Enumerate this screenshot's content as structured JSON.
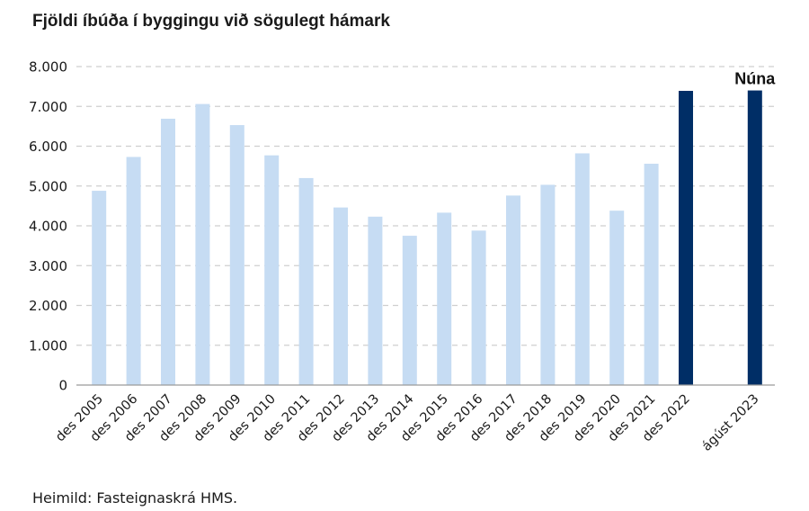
{
  "chart_data": {
    "type": "bar",
    "title": "Fjöldi íbúða í byggingu við sögulegt hámark",
    "categories": [
      "des 2005",
      "des 2006",
      "des 2007",
      "des 2008",
      "des 2009",
      "des 2010",
      "des 2011",
      "des 2012",
      "des 2013",
      "des 2014",
      "des 2015",
      "des 2016",
      "des 2017",
      "des 2018",
      "des 2019",
      "des 2020",
      "des 2021",
      "des 2022",
      "",
      "ágúst 2023"
    ],
    "values": [
      4880,
      5730,
      6690,
      7060,
      6530,
      5770,
      5200,
      4460,
      4230,
      3750,
      4330,
      3880,
      4760,
      5030,
      5820,
      4380,
      5560,
      7390,
      null,
      7400
    ],
    "highlight": [
      false,
      false,
      false,
      false,
      false,
      false,
      false,
      false,
      false,
      false,
      false,
      false,
      false,
      false,
      false,
      false,
      false,
      true,
      false,
      true
    ],
    "ylim": [
      0,
      8000
    ],
    "yticks": [
      0,
      1000,
      2000,
      3000,
      4000,
      5000,
      6000,
      7000,
      8000
    ],
    "ytick_labels": [
      "0",
      "1.000",
      "2.000",
      "3.000",
      "4.000",
      "5.000",
      "6.000",
      "7.000",
      "8.000"
    ],
    "xlabel": "",
    "ylabel": "",
    "grid": "horizontal dashed",
    "annotation": {
      "text": "Núna",
      "category": "ágúst 2023"
    },
    "colors": {
      "bar": "#c6dcf3",
      "highlight": "#002e66",
      "grid": "#cfcfcf",
      "axis": "#9a9a9a"
    }
  },
  "source": "Heimild: Fasteignaskrá HMS."
}
